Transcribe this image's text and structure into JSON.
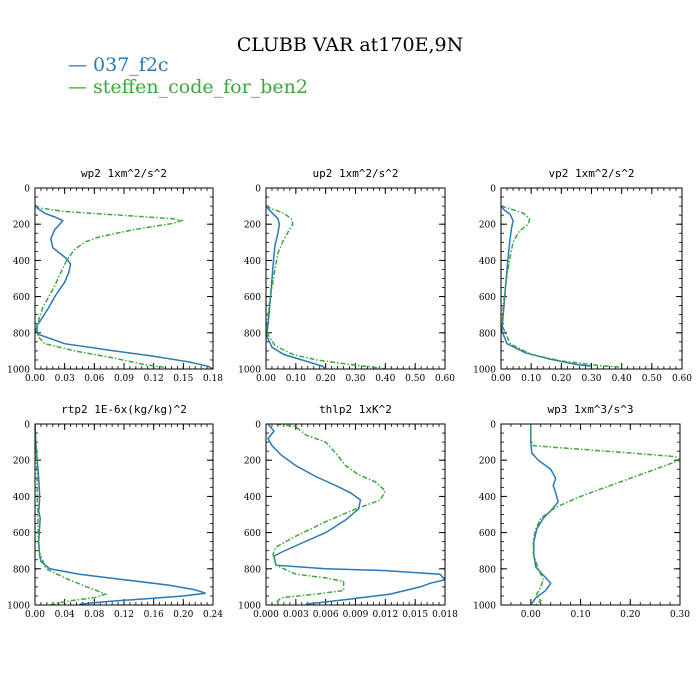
{
  "title": "CLUBB VAR at170E,9N",
  "legend": [
    {
      "label": "— 037_f2c",
      "color": "#2a78b5"
    },
    {
      "label": "— steffen_code_for_ben2",
      "color": "#3aa83a"
    }
  ],
  "chart_data": [
    {
      "type": "line",
      "title": "wp2  1xm^2/s^2",
      "xlim": [
        0,
        0.18
      ],
      "ylim": [
        0,
        1000
      ],
      "xticks": [
        0,
        0.03,
        0.06,
        0.09,
        0.12,
        0.15,
        0.18
      ],
      "xticklabels": [
        "0.00",
        "0.03",
        "0.06",
        "0.09",
        "0.12",
        "0.15",
        "0.18"
      ],
      "yticks": [
        0,
        200,
        400,
        600,
        800,
        1000
      ],
      "series": [
        {
          "name": "037_f2c",
          "color": "#2a78b5",
          "dashed": false,
          "x": [
            0,
            0.002,
            0.01,
            0.02,
            0.028,
            0.025,
            0.02,
            0.016,
            0.018,
            0.025,
            0.032,
            0.036,
            0.034,
            0.03,
            0.025,
            0.02,
            0.014,
            0.007,
            0.002,
            0.001,
            0.004,
            0.03,
            0.08,
            0.12,
            0.155,
            0.175,
            0.18
          ],
          "y": [
            95,
            110,
            140,
            160,
            180,
            200,
            230,
            280,
            330,
            360,
            390,
            420,
            470,
            520,
            560,
            600,
            660,
            720,
            760,
            790,
            810,
            860,
            900,
            930,
            960,
            985,
            1000
          ]
        },
        {
          "name": "steffen_code_for_ben2",
          "color": "#3aa83a",
          "dashed": true,
          "x": [
            0,
            0.004,
            0.03,
            0.1,
            0.14,
            0.148,
            0.14,
            0.1,
            0.065,
            0.05,
            0.04,
            0.032,
            0.025,
            0.02,
            0.014,
            0.008,
            0.004,
            0.002,
            0.003,
            0.01,
            0.04,
            0.08,
            0.11,
            0.13
          ],
          "y": [
            95,
            110,
            130,
            155,
            170,
            180,
            195,
            230,
            270,
            300,
            340,
            400,
            480,
            540,
            600,
            660,
            720,
            780,
            820,
            860,
            900,
            940,
            975,
            990
          ]
        }
      ]
    },
    {
      "type": "line",
      "title": "up2  1xm^2/s^2",
      "xlim": [
        0,
        0.6
      ],
      "ylim": [
        0,
        1000
      ],
      "xticks": [
        0,
        0.1,
        0.2,
        0.3,
        0.4,
        0.5,
        0.6
      ],
      "xticklabels": [
        "0.00",
        "0.10",
        "0.20",
        "0.30",
        "0.40",
        "0.50",
        "0.60"
      ],
      "yticks": [
        0,
        200,
        400,
        600,
        800,
        1000
      ],
      "series": [
        {
          "name": "037_f2c",
          "color": "#2a78b5",
          "dashed": false,
          "x": [
            0,
            0.01,
            0.025,
            0.04,
            0.045,
            0.04,
            0.03,
            0.025,
            0.02,
            0.015,
            0.01,
            0.005,
            0.003,
            0.02,
            0.06,
            0.12,
            0.19,
            0.2
          ],
          "y": [
            100,
            120,
            145,
            170,
            200,
            250,
            320,
            400,
            500,
            600,
            700,
            780,
            820,
            880,
            920,
            950,
            985,
            1000
          ]
        },
        {
          "name": "steffen_code_for_ben2",
          "color": "#3aa83a",
          "dashed": true,
          "x": [
            0,
            0.02,
            0.06,
            0.085,
            0.09,
            0.075,
            0.055,
            0.04,
            0.03,
            0.02,
            0.01,
            0.004,
            0.003,
            0.03,
            0.09,
            0.17,
            0.28,
            0.36,
            0.4
          ],
          "y": [
            100,
            115,
            140,
            170,
            200,
            240,
            300,
            360,
            450,
            550,
            650,
            750,
            800,
            870,
            920,
            950,
            975,
            990,
            1000
          ]
        }
      ]
    },
    {
      "type": "line",
      "title": "vp2  1xm^2/s^2",
      "xlim": [
        0,
        0.6
      ],
      "ylim": [
        0,
        1000
      ],
      "xticks": [
        0,
        0.1,
        0.2,
        0.3,
        0.4,
        0.5,
        0.6
      ],
      "xticklabels": [
        "0.00",
        "0.10",
        "0.20",
        "0.30",
        "0.40",
        "0.50",
        "0.60"
      ],
      "yticks": [
        0,
        200,
        400,
        600,
        800,
        1000
      ],
      "series": [
        {
          "name": "037_f2c",
          "color": "#2a78b5",
          "dashed": false,
          "x": [
            0,
            0.01,
            0.03,
            0.04,
            0.035,
            0.03,
            0.025,
            0.02,
            0.015,
            0.01,
            0.006,
            0.003,
            0.02,
            0.08,
            0.16,
            0.25,
            0.3
          ],
          "y": [
            100,
            120,
            145,
            180,
            220,
            280,
            360,
            450,
            550,
            650,
            730,
            790,
            860,
            910,
            945,
            975,
            985
          ]
        },
        {
          "name": "steffen_code_for_ben2",
          "color": "#3aa83a",
          "dashed": true,
          "x": [
            0,
            0.03,
            0.075,
            0.095,
            0.09,
            0.06,
            0.04,
            0.03,
            0.02,
            0.012,
            0.006,
            0.004,
            0.03,
            0.1,
            0.2,
            0.32,
            0.4
          ],
          "y": [
            100,
            115,
            140,
            170,
            200,
            240,
            300,
            380,
            480,
            580,
            680,
            760,
            860,
            920,
            955,
            980,
            990
          ]
        }
      ]
    },
    {
      "type": "line",
      "title": "rtp2  1E-6x(kg/kg)^2",
      "xlim": [
        0,
        0.24
      ],
      "ylim": [
        0,
        1000
      ],
      "xticks": [
        0,
        0.04,
        0.08,
        0.12,
        0.16,
        0.2,
        0.24
      ],
      "xticklabels": [
        "0.00",
        "0.04",
        "0.08",
        "0.12",
        "0.16",
        "0.20",
        "0.24"
      ],
      "yticks": [
        0,
        200,
        400,
        600,
        800,
        1000
      ],
      "series": [
        {
          "name": "037_f2c",
          "color": "#2a78b5",
          "dashed": false,
          "x": [
            0,
            0.001,
            0.003,
            0.005,
            0.006,
            0.006,
            0.005,
            0.007,
            0.006,
            0.005,
            0.006,
            0.008,
            0.02,
            0.06,
            0.12,
            0.18,
            0.215,
            0.23,
            0.2,
            0.15,
            0.1,
            0.06
          ],
          "y": [
            0,
            100,
            200,
            300,
            380,
            430,
            480,
            520,
            580,
            650,
            720,
            760,
            800,
            830,
            860,
            890,
            915,
            935,
            950,
            965,
            980,
            995
          ]
        },
        {
          "name": "steffen_code_for_ben2",
          "color": "#3aa83a",
          "dashed": true,
          "x": [
            0,
            0.001,
            0.002,
            0.003,
            0.003,
            0.004,
            0.004,
            0.005,
            0.015,
            0.04,
            0.07,
            0.095,
            0.08,
            0.05,
            0.03,
            0.02
          ],
          "y": [
            0,
            100,
            200,
            300,
            400,
            500,
            600,
            700,
            800,
            850,
            900,
            940,
            960,
            975,
            990,
            1000
          ]
        }
      ]
    },
    {
      "type": "line",
      "title": "thlp2  1xK^2",
      "xlim": [
        0,
        0.018
      ],
      "ylim": [
        0,
        1000
      ],
      "xticks": [
        0,
        0.003,
        0.006,
        0.009,
        0.012,
        0.015,
        0.018
      ],
      "xticklabels": [
        "0.000",
        "0.003",
        "0.006",
        "0.009",
        "0.012",
        "0.015",
        "0.018"
      ],
      "yticks": [
        0,
        200,
        400,
        600,
        800,
        1000
      ],
      "series": [
        {
          "name": "037_f2c",
          "color": "#2a78b5",
          "dashed": false,
          "x": [
            0.0002,
            0.0008,
            0.0002,
            0.0006,
            0.0015,
            0.003,
            0.005,
            0.007,
            0.0085,
            0.0095,
            0.0093,
            0.008,
            0.006,
            0.0035,
            0.0015,
            0.0008,
            0.001,
            0.006,
            0.012,
            0.0175,
            0.018,
            0.0165,
            0.0155,
            0.0125,
            0.008,
            0.004
          ],
          "y": [
            0,
            40,
            80,
            120,
            170,
            230,
            290,
            340,
            380,
            420,
            470,
            530,
            600,
            660,
            710,
            730,
            780,
            800,
            810,
            830,
            860,
            880,
            900,
            940,
            970,
            995
          ]
        },
        {
          "name": "steffen_code_for_ben2",
          "color": "#3aa83a",
          "dashed": true,
          "x": [
            0.001,
            0.003,
            0.004,
            0.006,
            0.007,
            0.008,
            0.0093,
            0.011,
            0.012,
            0.0115,
            0.009,
            0.006,
            0.003,
            0.001,
            0.0007,
            0.001,
            0.003,
            0.006,
            0.0078,
            0.0078,
            0.005,
            0.0015,
            0.001
          ],
          "y": [
            0,
            15,
            60,
            100,
            160,
            230,
            280,
            320,
            370,
            420,
            470,
            540,
            620,
            680,
            720,
            780,
            830,
            850,
            870,
            920,
            940,
            960,
            990
          ]
        }
      ]
    },
    {
      "type": "line",
      "title": "wp3  1xm^3/s^3",
      "xlim": [
        -0.06,
        0.3
      ],
      "ylim": [
        0,
        1000
      ],
      "xticks": [
        0,
        0.1,
        0.2,
        0.3
      ],
      "xticklabels": [
        "0.00",
        "0.10",
        "0.20",
        "0.30"
      ],
      "yticks": [
        0,
        200,
        400,
        600,
        800,
        1000
      ],
      "series": [
        {
          "name": "037_f2c",
          "color": "#2a78b5",
          "dashed": false,
          "x": [
            0,
            0,
            0.002,
            0.015,
            0.04,
            0.05,
            0.045,
            0.05,
            0.055,
            0.04,
            0.025,
            0.012,
            0.006,
            0.006,
            0.01,
            0.03,
            0.04,
            0.03,
            0.01,
            0
          ],
          "y": [
            0,
            100,
            160,
            200,
            250,
            300,
            340,
            380,
            430,
            480,
            520,
            580,
            650,
            720,
            790,
            850,
            880,
            920,
            960,
            1000
          ]
        },
        {
          "name": "steffen_code_for_ben2",
          "color": "#3aa83a",
          "dashed": true,
          "x": [
            0,
            0,
            0.005,
            0.2,
            0.29,
            0.3,
            0.25,
            0.18,
            0.1,
            0.05,
            0.02,
            0.01,
            0.005,
            0.005,
            0.015,
            0.025,
            0.02,
            0.01,
            0.02,
            0.01
          ],
          "y": [
            0,
            80,
            120,
            160,
            180,
            200,
            250,
            320,
            400,
            460,
            520,
            580,
            640,
            720,
            800,
            860,
            900,
            950,
            975,
            1000
          ]
        }
      ]
    }
  ]
}
